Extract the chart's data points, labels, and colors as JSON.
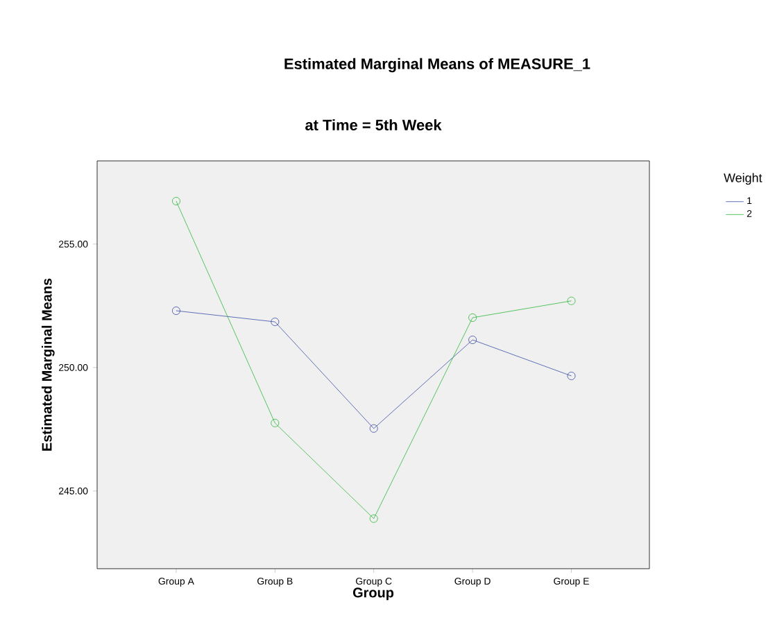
{
  "chart_data": {
    "type": "line",
    "title": "Estimated Marginal Means of MEASURE_1",
    "subtitle": "at Time = 5th Week",
    "xlabel": "Group",
    "ylabel": "Estimated Marginal Means",
    "legend_title": "Weight",
    "categories": [
      "Group A",
      "Group B",
      "Group C",
      "Group D",
      "Group E"
    ],
    "series": [
      {
        "name": "1",
        "color": "#3a4ea6",
        "values": [
          252.3,
          251.85,
          247.53,
          251.12,
          249.66
        ]
      },
      {
        "name": "2",
        "color": "#2fb83c",
        "values": [
          256.74,
          247.75,
          243.88,
          252.02,
          252.7
        ]
      }
    ],
    "ylim": [
      241.85,
      258.37
    ],
    "yticks": [
      {
        "value": 245,
        "label": "245.00"
      },
      {
        "value": 250,
        "label": "250.00"
      },
      {
        "value": 255,
        "label": "255.00"
      }
    ],
    "legend": "right",
    "marker": "circle",
    "line_style": "solid",
    "grid": false
  }
}
